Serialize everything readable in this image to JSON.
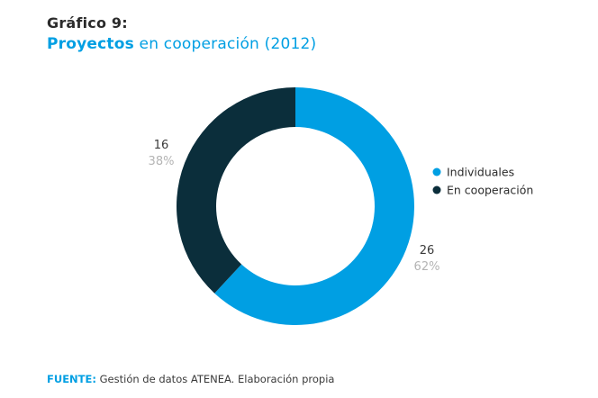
{
  "header": {
    "figure_label": "Gráfico 9:",
    "title_bold": "Proyectos",
    "title_rest": "en cooperación (2012)"
  },
  "chart_data": {
    "type": "pie",
    "style": "donut",
    "title": "Proyectos en cooperación (2012)",
    "categories": [
      "Individuales",
      "En cooperación"
    ],
    "values": [
      26,
      16
    ],
    "percent_labels": [
      "62%",
      "38%"
    ],
    "colors": [
      "#009fe3",
      "#0b2e3b"
    ],
    "legend_position": "right"
  },
  "source": {
    "label": "FUENTE:",
    "text": "Gestión de datos ATENEA. Elaboración propia"
  }
}
